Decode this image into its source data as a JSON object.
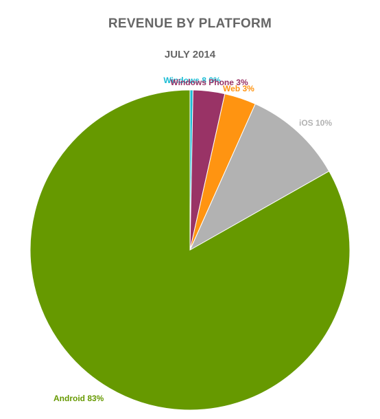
{
  "chart_data": {
    "type": "pie",
    "title": "REVENUE BY PLATFORM",
    "subtitle": "JULY 2014",
    "slices": [
      {
        "name": "Windows 8",
        "value": 0.3,
        "label": "Windows 8 0%",
        "color": "#1bbcd4"
      },
      {
        "name": "Windows Phone",
        "value": 3.2,
        "label": "Windows Phone 3%",
        "color": "#993366"
      },
      {
        "name": "Web",
        "value": 3.2,
        "label": "Web 3%",
        "color": "#ff9411"
      },
      {
        "name": "iOS",
        "value": 10.1,
        "label": "iOS 10%",
        "color": "#b2b2b2"
      },
      {
        "name": "Android",
        "value": 83.2,
        "label": "Android 83%",
        "color": "#669900"
      }
    ]
  }
}
